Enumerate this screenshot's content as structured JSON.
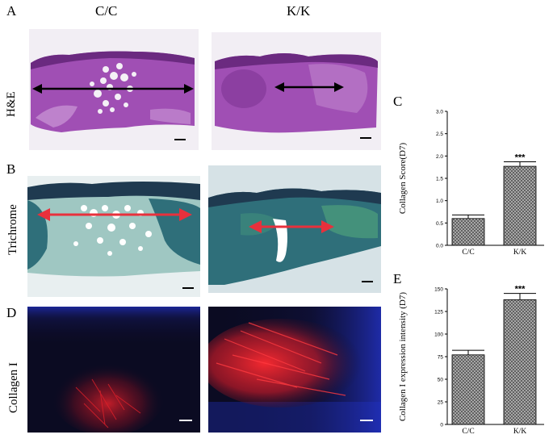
{
  "panels": {
    "A": "A",
    "B": "B",
    "D": "D",
    "C": "C",
    "E": "E"
  },
  "columns": [
    "C/C",
    "K/K"
  ],
  "rows": [
    "H&E",
    "Trichrome",
    "Collagen I"
  ],
  "colors": {
    "he_bg": "#f2eef4",
    "he_tissue": "#a04fb4",
    "he_tissue_dark": "#6b2a80",
    "tri_tissue": "#2f6f7a",
    "tri_light": "#9fc7c2",
    "collagen_bg": "#0b0b22",
    "collagen_red": "#e0202a",
    "collagen_blue": "#2333c8",
    "arrow_black": "#000000",
    "arrow_red": "#e8303c",
    "bar_fill": "#9a9a9a"
  },
  "chart_data": [
    {
      "type": "bar",
      "panel": "C",
      "categories": [
        "C/C",
        "K/K"
      ],
      "values": [
        0.6,
        1.77
      ],
      "errors": [
        0.08,
        0.1
      ],
      "ylabel": "Collagen Score(D7)",
      "ylim": [
        0,
        3.0
      ],
      "yticks": [
        "0.0",
        "0.5",
        "1.0",
        "1.5",
        "2.0",
        "2.5",
        "3.0"
      ],
      "significance": [
        "",
        "***"
      ]
    },
    {
      "type": "bar",
      "panel": "E",
      "categories": [
        "C/C",
        "K/K"
      ],
      "values": [
        77,
        138
      ],
      "errors": [
        5,
        7
      ],
      "ylabel": "Collagen I expression intensity (D7)",
      "ylim": [
        0,
        150
      ],
      "yticks": [
        "0",
        "25",
        "50",
        "75",
        "100",
        "125",
        "150"
      ],
      "significance": [
        "",
        "***"
      ]
    }
  ]
}
